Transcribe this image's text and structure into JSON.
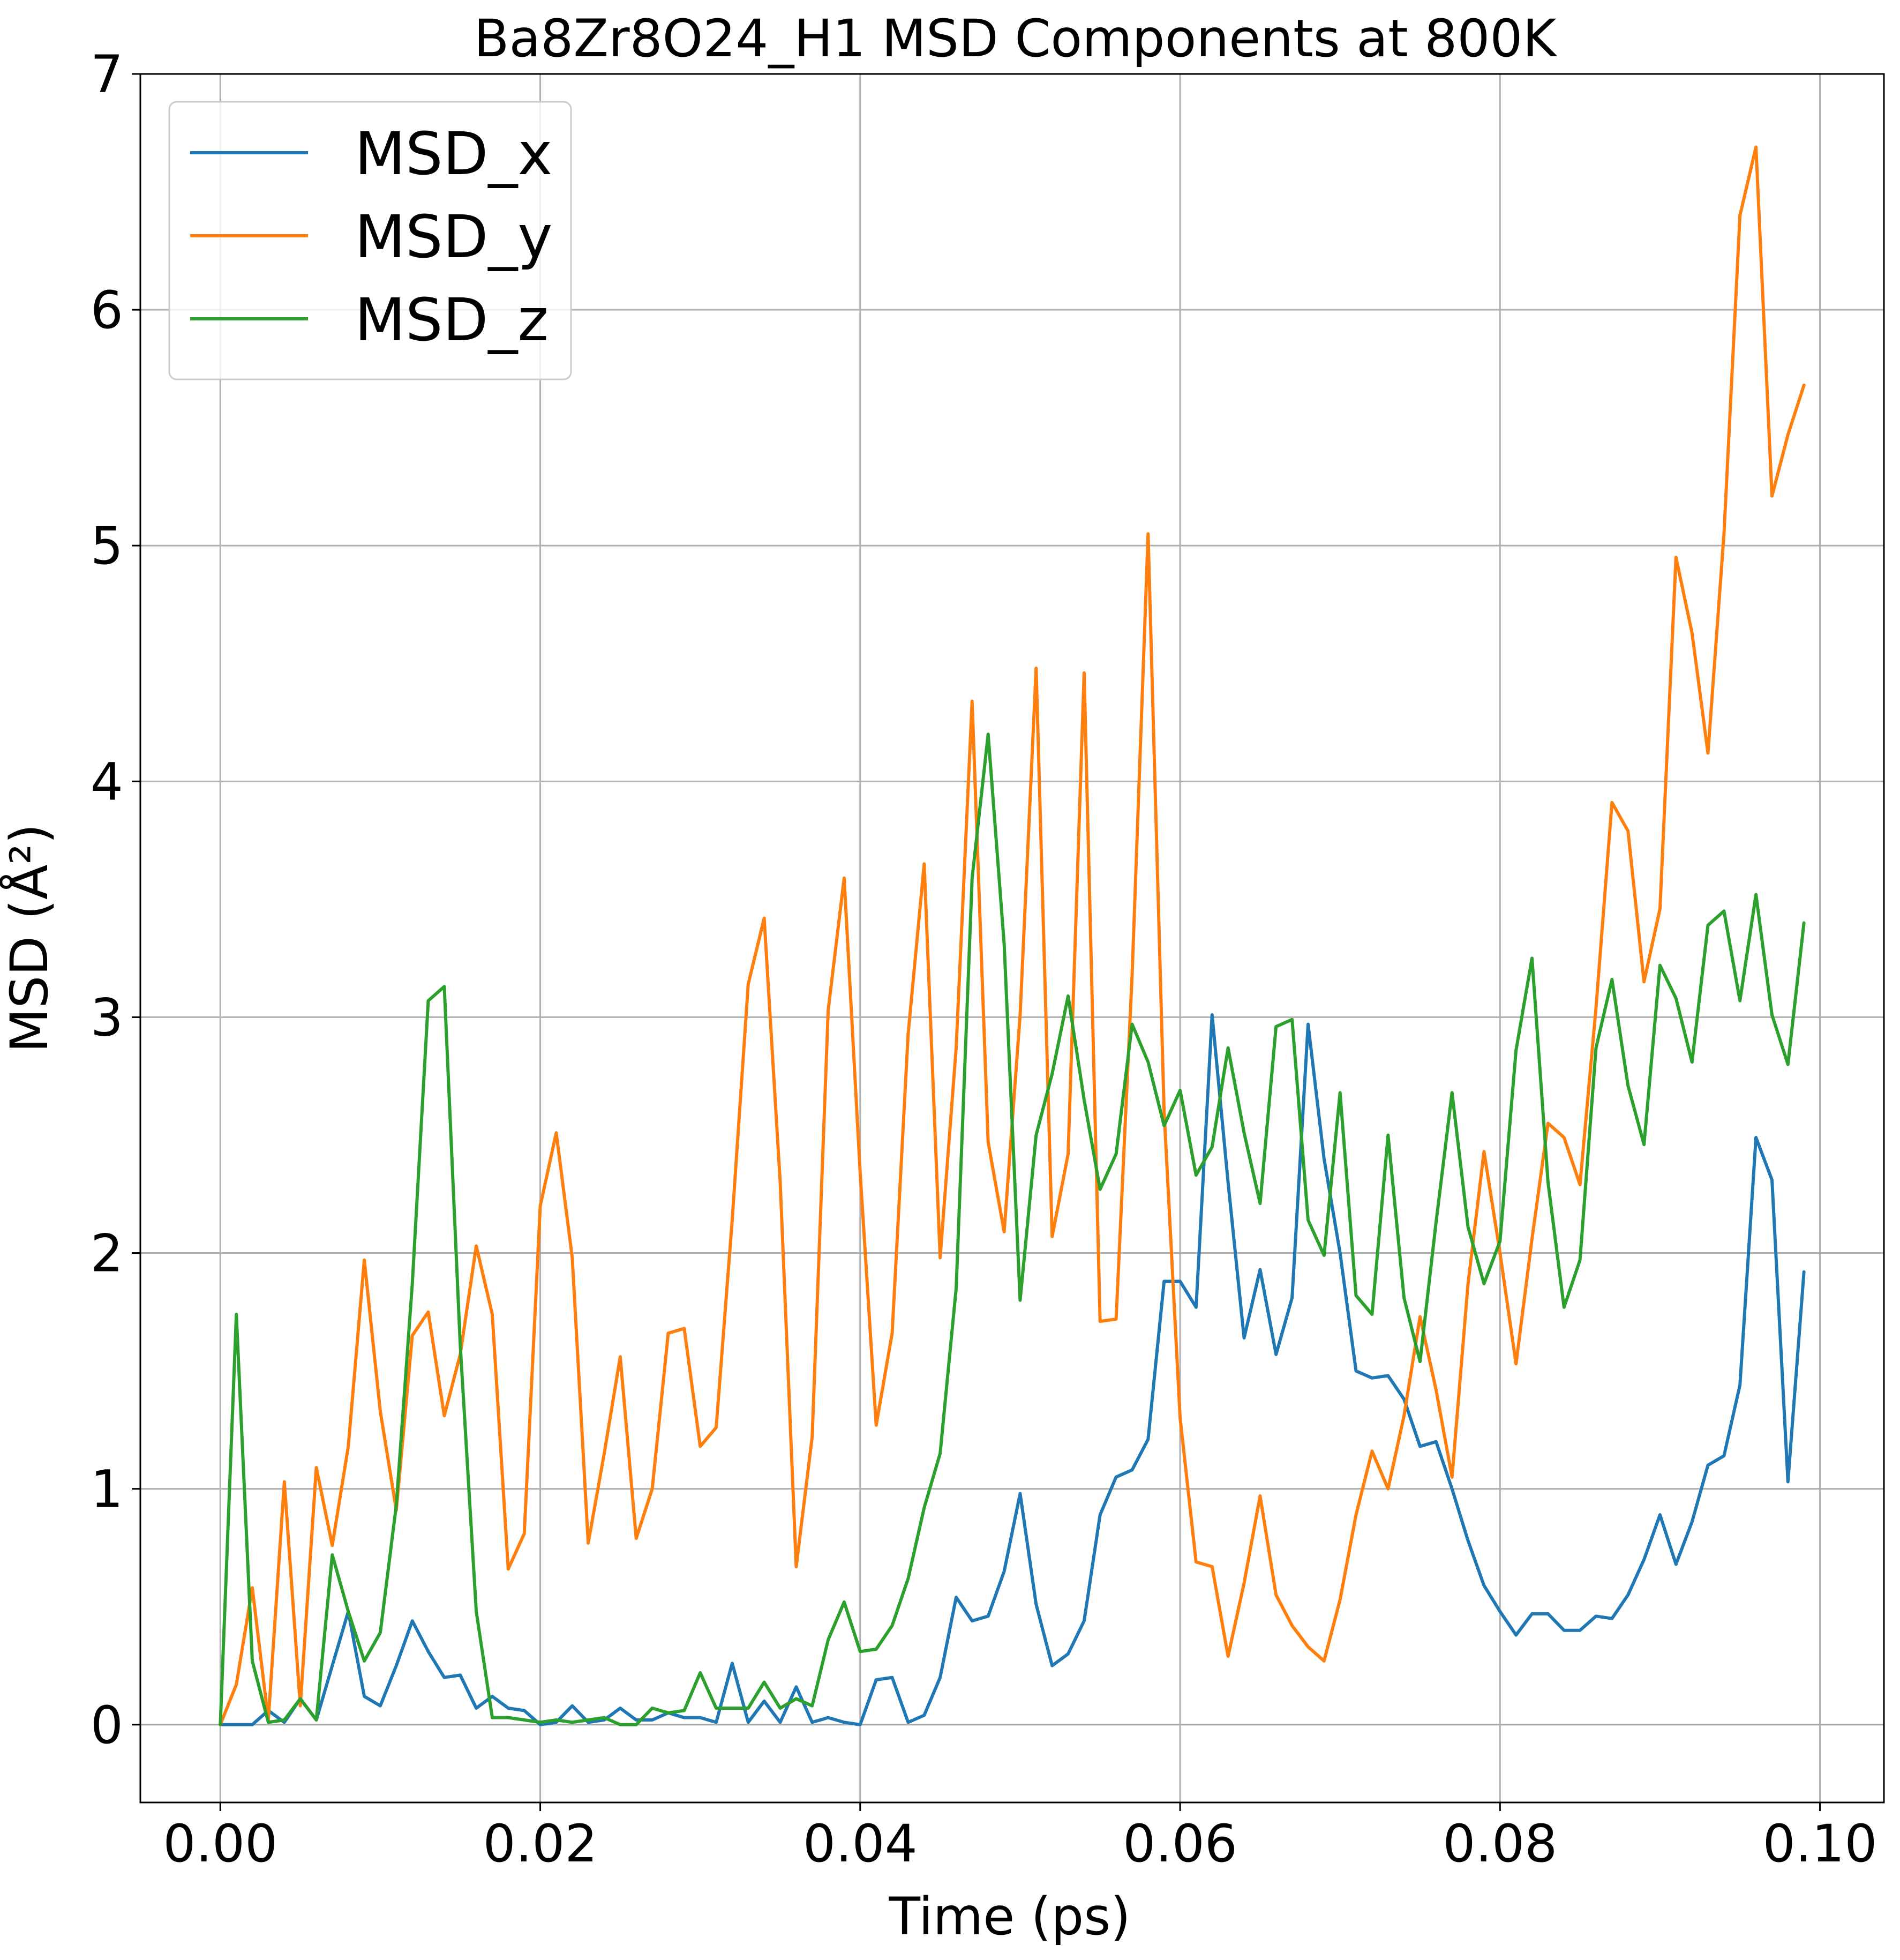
{
  "chart_data": {
    "type": "line",
    "title": "Ba8Zr8O24_H1 MSD Components at 800K",
    "xlabel": "Time (ps)",
    "ylabel": "MSD (Å²)",
    "xlim": [
      -0.005,
      0.104
    ],
    "ylim": [
      -0.33,
      7.0
    ],
    "xticks": [
      0.0,
      0.02,
      0.04,
      0.06,
      0.08,
      0.1
    ],
    "xtick_labels": [
      "0.00",
      "0.02",
      "0.04",
      "0.06",
      "0.08",
      "0.10"
    ],
    "yticks": [
      0,
      1,
      2,
      3,
      4,
      5,
      6,
      7
    ],
    "ytick_labels": [
      "0",
      "1",
      "2",
      "3",
      "4",
      "5",
      "6",
      "7"
    ],
    "grid": true,
    "legend_position": "top-left",
    "x_start": 0.0,
    "x_step": 0.001,
    "series": [
      {
        "name": "MSD_x",
        "color": "#1f77b4",
        "values": [
          0.0,
          0.0,
          0.0,
          0.06,
          0.01,
          0.11,
          0.02,
          0.25,
          0.48,
          0.12,
          0.08,
          0.25,
          0.44,
          0.31,
          0.2,
          0.21,
          0.07,
          0.12,
          0.07,
          0.06,
          0.0,
          0.01,
          0.08,
          0.01,
          0.02,
          0.07,
          0.02,
          0.02,
          0.05,
          0.03,
          0.03,
          0.01,
          0.26,
          0.01,
          0.1,
          0.01,
          0.16,
          0.01,
          0.03,
          0.01,
          0.0,
          0.19,
          0.2,
          0.01,
          0.04,
          0.2,
          0.54,
          0.44,
          0.46,
          0.65,
          0.98,
          0.51,
          0.25,
          0.3,
          0.44,
          0.89,
          1.05,
          1.08,
          1.21,
          1.88,
          1.88,
          1.77,
          3.01,
          2.3,
          1.64,
          1.93,
          1.57,
          1.81,
          2.97,
          2.4,
          2.0,
          1.5,
          1.47,
          1.48,
          1.38,
          1.18,
          1.2,
          1.0,
          0.78,
          0.59,
          0.48,
          0.38,
          0.47,
          0.47,
          0.4,
          0.4,
          0.46,
          0.45,
          0.55,
          0.7,
          0.89,
          0.68,
          0.86,
          1.1,
          1.14,
          1.44,
          2.49,
          2.31,
          1.03,
          1.92
        ]
      },
      {
        "name": "MSD_y",
        "color": "#ff7f0e",
        "values": [
          0.0,
          0.17,
          0.58,
          0.02,
          1.03,
          0.08,
          1.09,
          0.76,
          1.18,
          1.97,
          1.33,
          0.91,
          1.65,
          1.75,
          1.31,
          1.57,
          2.03,
          1.74,
          0.66,
          0.81,
          2.2,
          2.51,
          1.98,
          0.77,
          1.15,
          1.56,
          0.79,
          1.0,
          1.66,
          1.68,
          1.18,
          1.26,
          2.14,
          3.14,
          3.42,
          2.3,
          0.67,
          1.22,
          3.03,
          3.59,
          2.34,
          1.27,
          1.66,
          2.93,
          3.65,
          1.98,
          2.87,
          4.34,
          2.47,
          2.09,
          3.01,
          4.48,
          2.07,
          2.42,
          4.46,
          1.71,
          1.72,
          3.18,
          5.05,
          2.6,
          1.3,
          0.69,
          0.67,
          0.29,
          0.6,
          0.97,
          0.55,
          0.42,
          0.33,
          0.27,
          0.53,
          0.89,
          1.16,
          1.0,
          1.31,
          1.73,
          1.42,
          1.05,
          1.87,
          2.43,
          2.0,
          1.53,
          2.06,
          2.55,
          2.49,
          2.29,
          3.04,
          3.91,
          3.79,
          3.15,
          3.46,
          4.95,
          4.63,
          4.12,
          5.05,
          6.4,
          6.69,
          5.21,
          5.47,
          5.68
        ]
      },
      {
        "name": "MSD_z",
        "color": "#2ca02c",
        "values": [
          0.0,
          1.74,
          0.27,
          0.01,
          0.02,
          0.11,
          0.02,
          0.72,
          0.48,
          0.27,
          0.39,
          0.93,
          1.87,
          3.07,
          3.13,
          1.61,
          0.48,
          0.03,
          0.03,
          0.02,
          0.01,
          0.02,
          0.01,
          0.02,
          0.03,
          0.0,
          0.0,
          0.07,
          0.05,
          0.06,
          0.22,
          0.07,
          0.07,
          0.07,
          0.18,
          0.07,
          0.11,
          0.08,
          0.36,
          0.52,
          0.31,
          0.32,
          0.42,
          0.62,
          0.92,
          1.15,
          1.85,
          3.59,
          4.2,
          3.31,
          1.8,
          2.5,
          2.76,
          3.09,
          2.65,
          2.27,
          2.42,
          2.97,
          2.81,
          2.54,
          2.69,
          2.33,
          2.45,
          2.87,
          2.51,
          2.21,
          2.96,
          2.99,
          2.14,
          1.99,
          2.68,
          1.82,
          1.74,
          2.5,
          1.81,
          1.54,
          2.13,
          2.68,
          2.11,
          1.87,
          2.05,
          2.86,
          3.25,
          2.3,
          1.77,
          1.97,
          2.87,
          3.16,
          2.71,
          2.46,
          3.22,
          3.08,
          2.81,
          3.39,
          3.45,
          3.07,
          3.52,
          3.01,
          2.8,
          3.4
        ]
      }
    ]
  }
}
